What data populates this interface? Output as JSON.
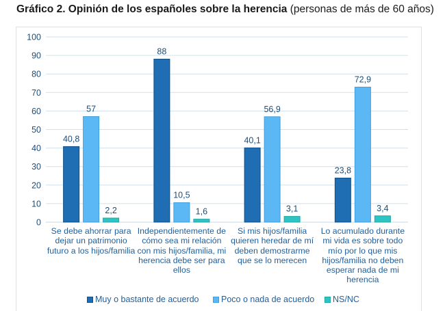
{
  "title": {
    "bold": "Gráfico 2. Opinión de los españoles sobre la herencia",
    "normal": "(personas de más de 60 años)"
  },
  "chart_data": {
    "type": "bar",
    "title": "Gráfico 2. Opinión de los españoles sobre la herencia (personas de más de 60 años)",
    "xlabel": "",
    "ylabel": "",
    "ylim": [
      0,
      100
    ],
    "yticks": [
      "0",
      "10",
      "20",
      "30",
      "40",
      "50",
      "60",
      "70",
      "80",
      "90",
      "100"
    ],
    "grid": true,
    "legend_position": "bottom",
    "categories": [
      "Se debe ahorrar para dejar un patrimonio futuro a los hijos/familia",
      "Independientemente de cómo sea mi relación con mis hijos/familia, mi herencia debe ser para ellos",
      "Si mis hijos/familia quieren heredar de mí deben demostrarme que se lo merecen",
      "Lo acumulado durante mi vida es sobre todo mío por lo que mis hijos/familia no deben esperar nada de mi herencia"
    ],
    "category_lines": [
      [
        "Se debe ahorrar para",
        "dejar un patrimonio",
        "futuro a los hijos/familia"
      ],
      [
        "Independientemente de",
        "cómo sea mi relación",
        "con mis hijos/familia, mi",
        "herencia debe ser para",
        "ellos"
      ],
      [
        "Si mis hijos/familia",
        "quieren heredar de mí",
        "deben demostrarme",
        "que se lo merecen"
      ],
      [
        "Lo acumulado durante",
        "mi vida es sobre todo",
        "mío por lo que mis",
        "hijos/familia no deben",
        "esperar nada de mi",
        "herencia"
      ]
    ],
    "series": [
      {
        "name": "Muy o bastante de acuerdo",
        "color": "#1f6eb4",
        "values": [
          40.8,
          88,
          40.1,
          23.8
        ],
        "labels": [
          "40,8",
          "88",
          "40,1",
          "23,8"
        ]
      },
      {
        "name": "Poco o nada de acuerdo",
        "color": "#5bb8f5",
        "values": [
          57,
          10.5,
          56.9,
          72.9
        ],
        "labels": [
          "57",
          "10,5",
          "56,9",
          "72,9"
        ]
      },
      {
        "name": "NS/NC",
        "color": "#2ec4c4",
        "values": [
          2.2,
          1.6,
          3.1,
          3.4
        ],
        "labels": [
          "2,2",
          "1,6",
          "3,1",
          "3,4"
        ]
      }
    ]
  }
}
